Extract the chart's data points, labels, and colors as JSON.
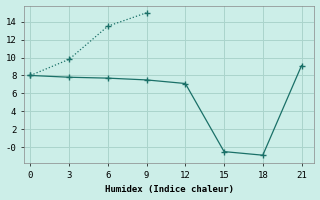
{
  "xlabel": "Humidex (Indice chaleur)",
  "bg_color": "#cceee8",
  "grid_color": "#aad4cc",
  "line_color": "#1a7068",
  "line1_x": [
    0,
    3,
    6,
    9
  ],
  "line1_y": [
    8.0,
    9.8,
    13.5,
    15.0
  ],
  "line2_x": [
    0,
    3,
    6,
    9,
    12,
    15,
    18,
    21
  ],
  "line2_y": [
    8.0,
    7.8,
    7.7,
    7.5,
    7.1,
    -0.5,
    -0.9,
    9.1
  ],
  "xlim": [
    -0.5,
    22
  ],
  "ylim": [
    -1.8,
    15.8
  ],
  "xticks": [
    0,
    3,
    6,
    9,
    12,
    15,
    18,
    21
  ],
  "yticks": [
    0,
    2,
    4,
    6,
    8,
    10,
    12,
    14
  ]
}
